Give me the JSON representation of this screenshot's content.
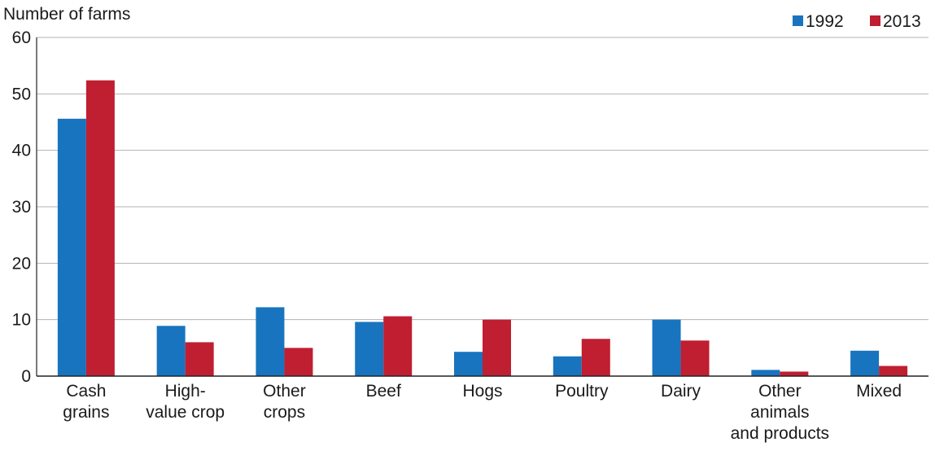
{
  "chart_data": {
    "type": "bar",
    "title": "",
    "ylabel": "Number of farms",
    "xlabel": "",
    "ylim": [
      0,
      60
    ],
    "yticks": [
      0,
      10,
      20,
      30,
      40,
      50,
      60
    ],
    "grid": true,
    "legend_position": "top-right",
    "categories": [
      [
        "Cash",
        "grains"
      ],
      [
        "High-",
        "value crop"
      ],
      [
        "Other",
        "crops"
      ],
      [
        "Beef"
      ],
      [
        "Hogs"
      ],
      [
        "Poultry"
      ],
      [
        "Dairy"
      ],
      [
        "Other",
        "animals",
        "and products"
      ],
      [
        "Mixed"
      ]
    ],
    "series": [
      {
        "name": "1992",
        "color": "#1874be",
        "values": [
          45.6,
          8.9,
          12.2,
          9.6,
          4.3,
          3.5,
          10.0,
          1.1,
          4.5
        ]
      },
      {
        "name": "2013",
        "color": "#c01e31",
        "values": [
          52.4,
          6.0,
          5.0,
          10.6,
          10.0,
          6.6,
          6.3,
          0.8,
          1.8
        ]
      }
    ]
  }
}
